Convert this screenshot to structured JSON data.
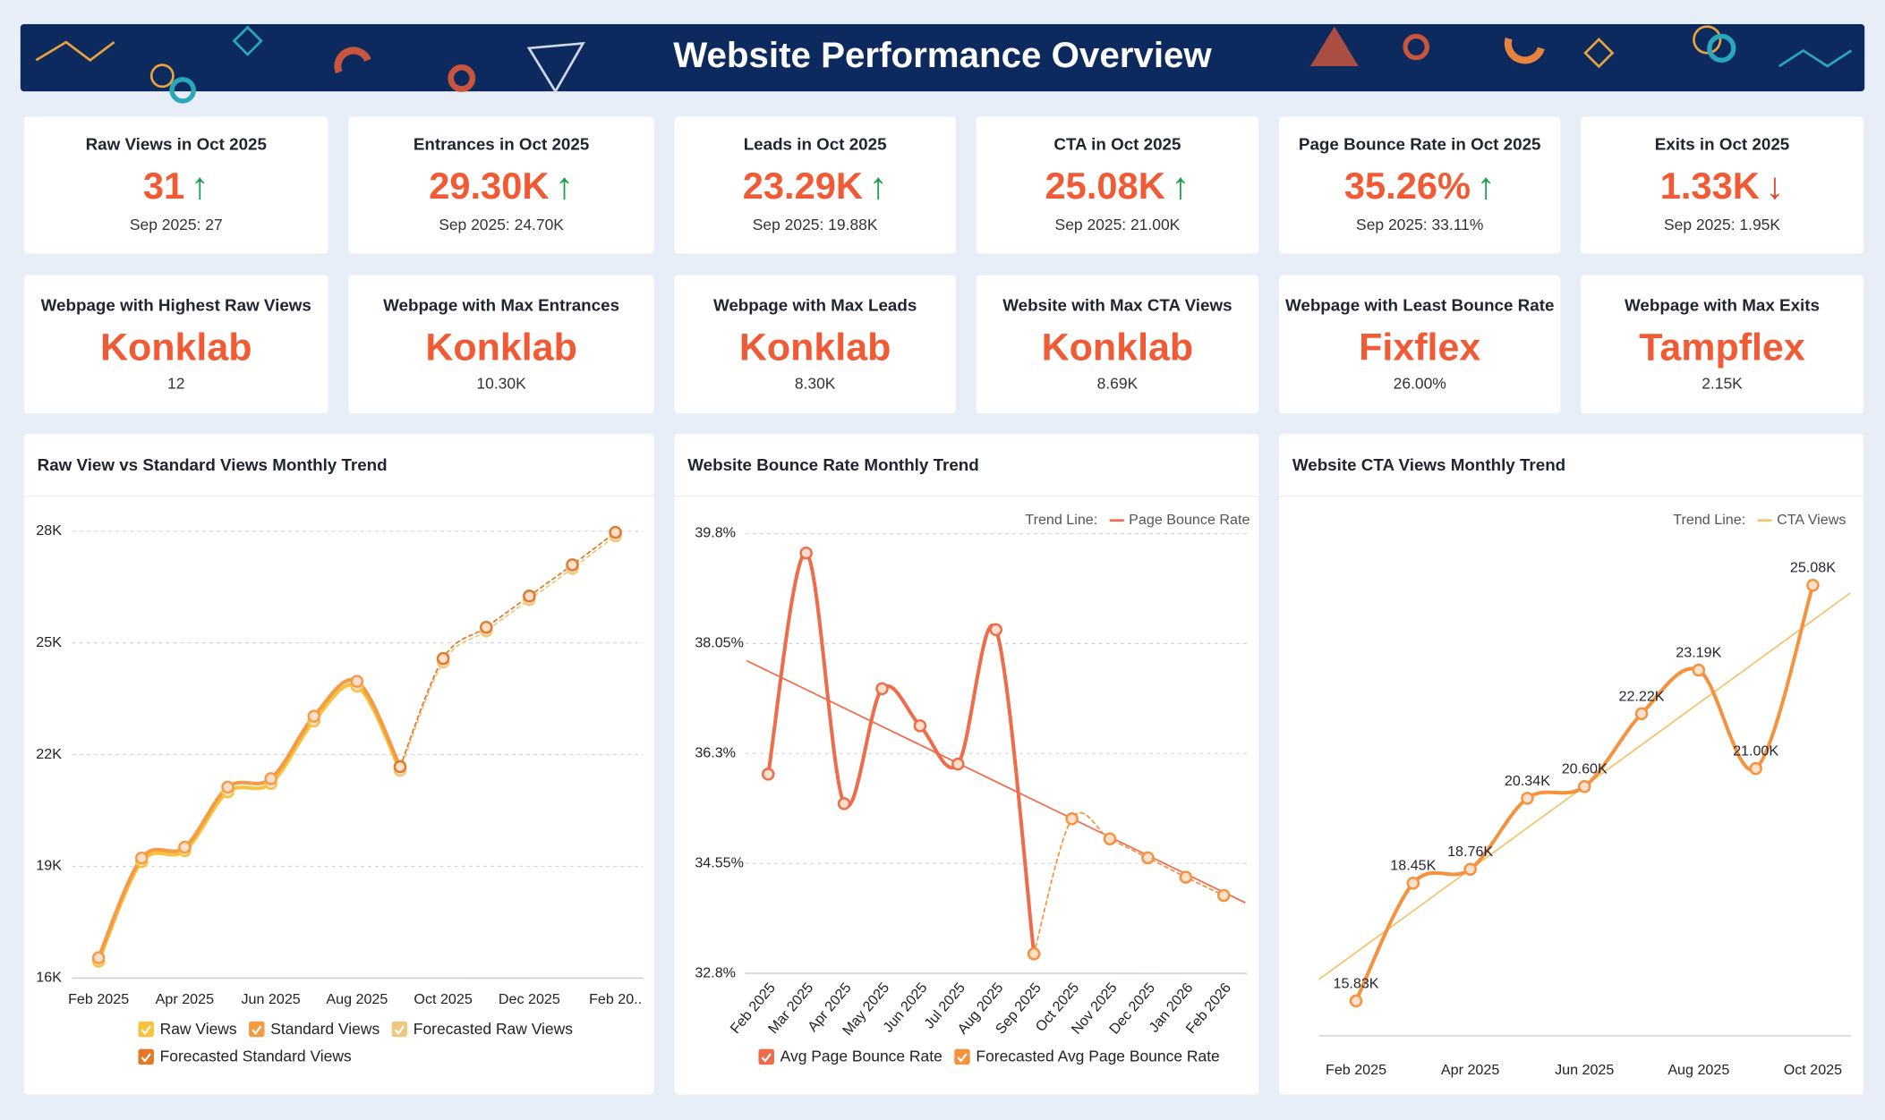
{
  "header": {
    "title": "Website Performance Overview"
  },
  "kpis": [
    {
      "title": "Raw Views in Oct 2025",
      "value": "31",
      "trend": "↑",
      "trend_color": "#1a9e4b",
      "previous": "Sep 2025: 27"
    },
    {
      "title": "Entrances in Oct 2025",
      "value": "29.30K",
      "trend": "↑",
      "trend_color": "#1a9e4b",
      "previous": "Sep 2025: 24.70K"
    },
    {
      "title": "Leads in Oct 2025",
      "value": "23.29K",
      "trend": "↑",
      "trend_color": "#1a9e4b",
      "previous": "Sep 2025: 19.88K"
    },
    {
      "title": "CTA in Oct 2025",
      "value": "25.08K",
      "trend": "↑",
      "trend_color": "#1a9e4b",
      "previous": "Sep 2025: 21.00K"
    },
    {
      "title": "Page Bounce Rate in Oct 2025",
      "value": "35.26%",
      "trend": "↑",
      "trend_color": "#1a9e4b",
      "previous": "Sep 2025: 33.11%"
    },
    {
      "title": "Exits in Oct 2025",
      "value": "1.33K",
      "trend": "↓",
      "trend_color": "#e2442c",
      "previous": "Sep 2025: 1.95K"
    }
  ],
  "highlights": [
    {
      "title": "Webpage with Highest Raw Views",
      "value": "Konklab",
      "detail": "12"
    },
    {
      "title": "Webpage with Max Entrances",
      "value": "Konklab",
      "detail": "10.30K"
    },
    {
      "title": "Webpage with Max Leads",
      "value": "Konklab",
      "detail": "8.30K"
    },
    {
      "title": "Website with Max CTA Views",
      "value": "Konklab",
      "detail": "8.69K"
    },
    {
      "title": "Webpage with Least Bounce Rate",
      "value": "Fixflex",
      "detail": "26.00%"
    },
    {
      "title": "Webpage with Max Exits",
      "value": "Tampflex",
      "detail": "2.15K"
    }
  ],
  "chart_data": [
    {
      "type": "line",
      "title": "Raw View vs Standard Views Monthly Trend",
      "categories": [
        "Feb 2025",
        null,
        "Apr 2025",
        null,
        "Jun 2025",
        null,
        "Aug 2025",
        null,
        "Oct 2025",
        null,
        "Dec 2025",
        null,
        "Feb 20.."
      ],
      "series": [
        {
          "name": "Raw Views",
          "color": "#f7c23c",
          "dash": false,
          "values": [
            16452,
            19129,
            19419,
            21000,
            21226,
            22903,
            23839,
            21581,
            null,
            null,
            null,
            null,
            null
          ]
        },
        {
          "name": "Standard Views",
          "color": "#f59a45",
          "dash": false,
          "values": [
            16548,
            19226,
            19516,
            21129,
            21355,
            23032,
            23968,
            21677,
            null,
            null,
            null,
            null,
            null
          ]
        },
        {
          "name": "Forecasted Raw Views",
          "color": "#ecc97f",
          "dash": true,
          "values": [
            null,
            null,
            null,
            null,
            null,
            null,
            null,
            21581,
            24484,
            25323,
            26161,
            27000,
            27871
          ]
        },
        {
          "name": "Forecasted Standard Views",
          "color": "#e07a2a",
          "dash": true,
          "values": [
            null,
            null,
            null,
            null,
            null,
            null,
            null,
            21677,
            24581,
            25419,
            26258,
            27097,
            27968
          ]
        }
      ],
      "ylim": [
        16000,
        28000
      ],
      "yticks": [
        {
          "value": 16000,
          "label": "16K"
        },
        {
          "value": 19000,
          "label": "19K"
        },
        {
          "value": 22000,
          "label": "22K"
        },
        {
          "value": 25000,
          "label": "25K"
        },
        {
          "value": 28000,
          "label": "28K"
        }
      ],
      "grid": true,
      "legend": "bottom"
    },
    {
      "type": "line",
      "title": "Website Bounce Rate Monthly Trend",
      "categories": [
        "Feb 2025",
        "Mar 2025",
        "Apr 2025",
        "May 2025",
        "Jun 2025",
        "Jul 2025",
        "Aug 2025",
        "Sep 2025",
        "Oct 2025",
        "Nov 2025",
        "Dec 2025",
        "Jan 2026",
        "Feb 2026"
      ],
      "series": [
        {
          "name": "Avg Page Bounce Rate",
          "color": "#ef6c4a",
          "dash": false,
          "values": [
            35.97,
            39.49,
            35.5,
            37.33,
            36.74,
            36.13,
            38.27,
            33.11,
            null,
            null,
            null,
            null,
            null
          ]
        },
        {
          "name": "Forecasted Avg Page Bounce Rate",
          "color": "#f5923e",
          "dash": true,
          "values": [
            null,
            null,
            null,
            null,
            null,
            null,
            null,
            33.11,
            35.26,
            34.94,
            34.64,
            34.33,
            34.04
          ]
        }
      ],
      "trend_line": {
        "label": "Trend Line:",
        "name": "Page Bounce Rate",
        "color": "#ef6c4a",
        "start": 37.61,
        "end": 34.09
      },
      "ylim": [
        32.8,
        39.8
      ],
      "yticks": [
        {
          "value": 32.8,
          "label": "32.8%"
        },
        {
          "value": 34.55,
          "label": "34.55%"
        },
        {
          "value": 36.3,
          "label": "36.3%"
        },
        {
          "value": 38.05,
          "label": "38.05%"
        },
        {
          "value": 39.8,
          "label": "39.8%"
        }
      ],
      "grid": true,
      "legend": "bottom"
    },
    {
      "type": "line",
      "title": "Website CTA Views Monthly Trend",
      "categories": [
        "Feb 2025",
        null,
        "Apr 2025",
        null,
        "Jun 2025",
        null,
        "Aug 2025",
        null,
        "Oct 2025"
      ],
      "series": [
        {
          "color": "#f5923e",
          "dash": false,
          "values": [
            15830,
            18450,
            18760,
            20340,
            20600,
            22220,
            23190,
            21000,
            25080
          ],
          "value_labels": [
            "15.83K",
            "18.45K",
            "18.76K",
            "20.34K",
            "20.60K",
            "22.22K",
            "23.19K",
            "21.00K",
            "25.08K"
          ]
        }
      ],
      "trend_line": {
        "label": "Trend Line:",
        "name": "CTA Views",
        "color": "#f3c46e",
        "start": 16910,
        "end": 24300
      },
      "grid": false,
      "legend": false
    }
  ]
}
